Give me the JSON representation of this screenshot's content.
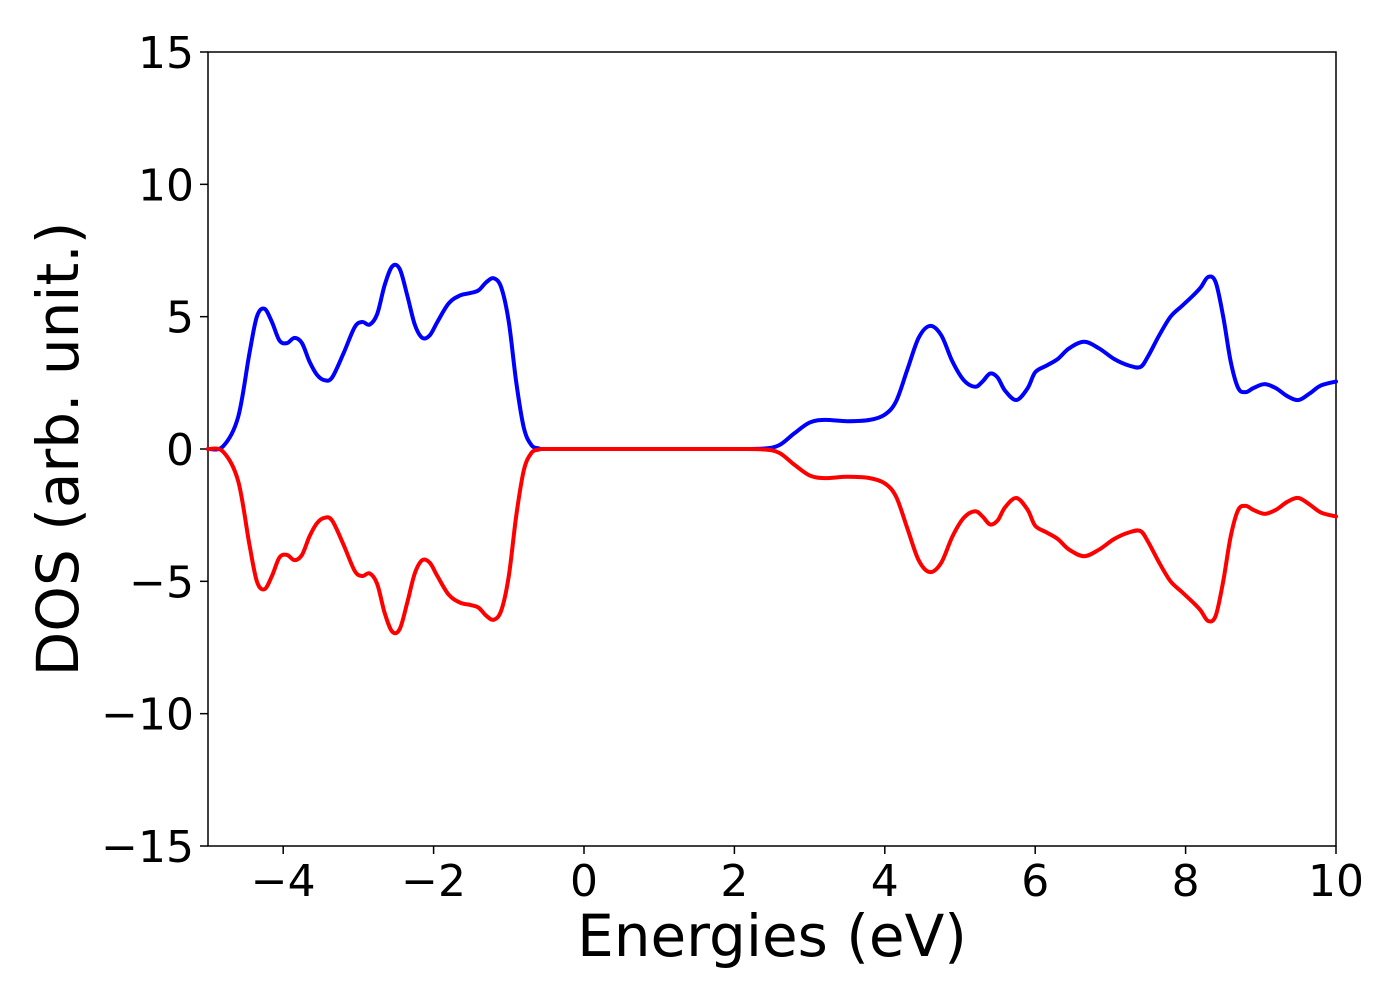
{
  "chart_data": {
    "type": "line",
    "xlabel": "Energies (eV)",
    "ylabel": "DOS (arb. unit.)",
    "xlim": [
      -5,
      10
    ],
    "ylim": [
      -15,
      15
    ],
    "xticks": [
      -4,
      -2,
      0,
      2,
      4,
      6,
      8,
      10
    ],
    "xtick_labels": [
      "−4",
      "−2",
      "0",
      "2",
      "4",
      "6",
      "8",
      "10"
    ],
    "yticks": [
      -15,
      -10,
      -5,
      0,
      5,
      10,
      15
    ],
    "ytick_labels": [
      "−15",
      "−10",
      "−5",
      "0",
      "5",
      "10",
      "15"
    ],
    "grid": false,
    "series": [
      {
        "color": "#0000ff",
        "x": [
          -5.0,
          -4.8,
          -4.6,
          -4.45,
          -4.35,
          -4.25,
          -4.15,
          -4.05,
          -3.95,
          -3.85,
          -3.75,
          -3.65,
          -3.55,
          -3.45,
          -3.35,
          -3.2,
          -3.05,
          -2.95,
          -2.85,
          -2.75,
          -2.65,
          -2.55,
          -2.45,
          -2.35,
          -2.25,
          -2.15,
          -2.05,
          -1.95,
          -1.8,
          -1.65,
          -1.5,
          -1.4,
          -1.3,
          -1.2,
          -1.1,
          -1.0,
          -0.9,
          -0.8,
          -0.7,
          -0.6,
          -0.5,
          0.0,
          1.0,
          2.0,
          2.4,
          2.6,
          2.8,
          3.0,
          3.2,
          3.5,
          3.8,
          4.0,
          4.15,
          4.3,
          4.45,
          4.6,
          4.75,
          4.9,
          5.05,
          5.2,
          5.3,
          5.4,
          5.5,
          5.6,
          5.75,
          5.9,
          6.0,
          6.15,
          6.3,
          6.45,
          6.65,
          6.85,
          7.05,
          7.25,
          7.4,
          7.5,
          7.65,
          7.8,
          7.95,
          8.1,
          8.2,
          8.3,
          8.4,
          8.5,
          8.6,
          8.7,
          8.8,
          8.9,
          9.05,
          9.2,
          9.35,
          9.5,
          9.65,
          9.8,
          10.0
        ],
        "y": [
          0.0,
          0.1,
          1.2,
          3.6,
          5.0,
          5.3,
          4.8,
          4.1,
          4.0,
          4.2,
          4.0,
          3.3,
          2.8,
          2.6,
          2.7,
          3.6,
          4.6,
          4.8,
          4.7,
          5.1,
          6.2,
          6.9,
          6.8,
          5.8,
          4.7,
          4.2,
          4.3,
          4.8,
          5.5,
          5.8,
          5.9,
          6.0,
          6.3,
          6.45,
          6.1,
          4.8,
          2.5,
          0.8,
          0.15,
          0.02,
          0.0,
          0.0,
          0.0,
          0.0,
          0.02,
          0.15,
          0.6,
          1.0,
          1.1,
          1.05,
          1.1,
          1.3,
          1.8,
          3.0,
          4.2,
          4.65,
          4.3,
          3.3,
          2.6,
          2.35,
          2.55,
          2.85,
          2.7,
          2.2,
          1.85,
          2.3,
          2.9,
          3.15,
          3.4,
          3.8,
          4.05,
          3.8,
          3.4,
          3.15,
          3.1,
          3.5,
          4.3,
          5.0,
          5.4,
          5.8,
          6.1,
          6.5,
          6.3,
          5.0,
          3.3,
          2.3,
          2.15,
          2.3,
          2.45,
          2.3,
          2.0,
          1.85,
          2.1,
          2.4,
          2.55
        ]
      },
      {
        "color": "#ff0000",
        "x": [
          -5.0,
          -4.8,
          -4.6,
          -4.45,
          -4.35,
          -4.25,
          -4.15,
          -4.05,
          -3.95,
          -3.85,
          -3.75,
          -3.65,
          -3.55,
          -3.45,
          -3.35,
          -3.2,
          -3.05,
          -2.95,
          -2.85,
          -2.75,
          -2.65,
          -2.55,
          -2.45,
          -2.35,
          -2.25,
          -2.15,
          -2.05,
          -1.95,
          -1.8,
          -1.65,
          -1.5,
          -1.4,
          -1.3,
          -1.2,
          -1.1,
          -1.0,
          -0.9,
          -0.8,
          -0.7,
          -0.6,
          -0.5,
          0.0,
          1.0,
          2.0,
          2.4,
          2.6,
          2.8,
          3.0,
          3.2,
          3.5,
          3.8,
          4.0,
          4.15,
          4.3,
          4.45,
          4.6,
          4.75,
          4.9,
          5.05,
          5.2,
          5.3,
          5.4,
          5.5,
          5.6,
          5.75,
          5.9,
          6.0,
          6.15,
          6.3,
          6.45,
          6.65,
          6.85,
          7.05,
          7.25,
          7.4,
          7.5,
          7.65,
          7.8,
          7.95,
          8.1,
          8.2,
          8.3,
          8.4,
          8.5,
          8.6,
          8.7,
          8.8,
          8.9,
          9.05,
          9.2,
          9.35,
          9.5,
          9.65,
          9.8,
          10.0
        ],
        "y": [
          0.0,
          -0.1,
          -1.2,
          -3.6,
          -5.0,
          -5.3,
          -4.8,
          -4.1,
          -4.0,
          -4.2,
          -4.0,
          -3.3,
          -2.8,
          -2.6,
          -2.7,
          -3.6,
          -4.6,
          -4.8,
          -4.7,
          -5.1,
          -6.2,
          -6.9,
          -6.8,
          -5.8,
          -4.7,
          -4.2,
          -4.3,
          -4.8,
          -5.5,
          -5.8,
          -5.9,
          -6.0,
          -6.3,
          -6.45,
          -6.1,
          -4.8,
          -2.5,
          -0.8,
          -0.15,
          -0.02,
          0.0,
          0.0,
          0.0,
          0.0,
          -0.02,
          -0.15,
          -0.6,
          -1.0,
          -1.1,
          -1.05,
          -1.1,
          -1.3,
          -1.8,
          -3.0,
          -4.2,
          -4.65,
          -4.3,
          -3.3,
          -2.6,
          -2.35,
          -2.55,
          -2.85,
          -2.7,
          -2.2,
          -1.85,
          -2.3,
          -2.9,
          -3.15,
          -3.4,
          -3.8,
          -4.05,
          -3.8,
          -3.4,
          -3.15,
          -3.1,
          -3.5,
          -4.3,
          -5.0,
          -5.4,
          -5.8,
          -6.1,
          -6.5,
          -6.3,
          -5.0,
          -3.3,
          -2.3,
          -2.15,
          -2.3,
          -2.45,
          -2.3,
          -2.0,
          -1.85,
          -2.1,
          -2.4,
          -2.55
        ]
      }
    ]
  }
}
